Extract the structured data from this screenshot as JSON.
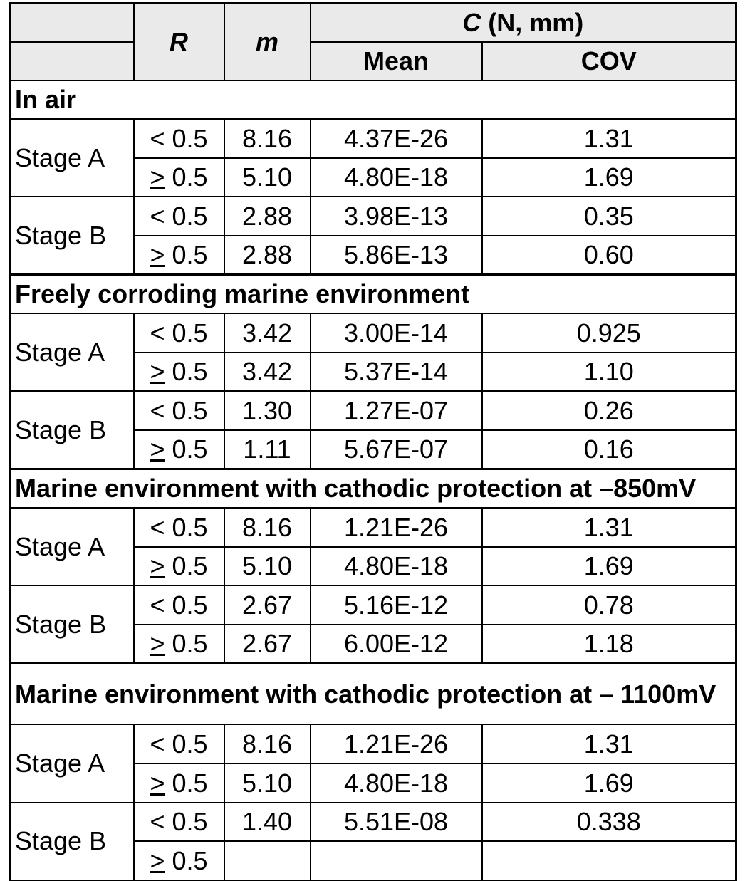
{
  "header": {
    "r_label": "R",
    "m_label": "m",
    "c_label_italic": "C",
    "c_label_units": " (N, mm)",
    "mean_label": "Mean",
    "cov_label": "COV"
  },
  "sections": [
    {
      "title": "In air",
      "stages": [
        {
          "stage": "Stage A",
          "rows": [
            {
              "r_sym": "<",
              "r_val": " 0.5",
              "m": "8.16",
              "mean": "4.37E-26",
              "cov": "1.31"
            },
            {
              "r_sym": ">",
              "r_val": " 0.5",
              "m": "5.10",
              "mean": "4.80E-18",
              "cov": "1.69"
            }
          ]
        },
        {
          "stage": "Stage B",
          "rows": [
            {
              "r_sym": "<",
              "r_val": " 0.5",
              "m": "2.88",
              "mean": "3.98E-13",
              "cov": "0.35"
            },
            {
              "r_sym": ">",
              "r_val": " 0.5",
              "m": "2.88",
              "mean": "5.86E-13",
              "cov": "0.60"
            }
          ]
        }
      ]
    },
    {
      "title": "Freely corroding marine environment",
      "stages": [
        {
          "stage": "Stage A",
          "rows": [
            {
              "r_sym": "<",
              "r_val": " 0.5",
              "m": "3.42",
              "mean": "3.00E-14",
              "cov": "0.925"
            },
            {
              "r_sym": ">",
              "r_val": " 0.5",
              "m": "3.42",
              "mean": "5.37E-14",
              "cov": "1.10"
            }
          ]
        },
        {
          "stage": "Stage B",
          "rows": [
            {
              "r_sym": "<",
              "r_val": " 0.5",
              "m": "1.30",
              "mean": "1.27E-07",
              "cov": "0.26"
            },
            {
              "r_sym": ">",
              "r_val": " 0.5",
              "m": "1.11",
              "mean": "5.67E-07",
              "cov": "0.16"
            }
          ]
        }
      ]
    },
    {
      "title": "Marine environment with cathodic protection at –850mV",
      "stages": [
        {
          "stage": "Stage A",
          "rows": [
            {
              "r_sym": "<",
              "r_val": " 0.5",
              "m": "8.16",
              "mean": "1.21E-26",
              "cov": "1.31"
            },
            {
              "r_sym": ">",
              "r_val": " 0.5",
              "m": "5.10",
              "mean": "4.80E-18",
              "cov": "1.69"
            }
          ]
        },
        {
          "stage": "Stage B",
          "rows": [
            {
              "r_sym": "<",
              "r_val": " 0.5",
              "m": "2.67",
              "mean": "5.16E-12",
              "cov": "0.78"
            },
            {
              "r_sym": ">",
              "r_val": " 0.5",
              "m": "2.67",
              "mean": "6.00E-12",
              "cov": "1.18"
            }
          ]
        }
      ]
    },
    {
      "title": "Marine environment with cathodic protection at – 1100mV",
      "stages": [
        {
          "stage": "Stage A",
          "rows": [
            {
              "r_sym": "<",
              "r_val": " 0.5",
              "m": "8.16",
              "mean": "1.21E-26",
              "cov": "1.31"
            },
            {
              "r_sym": ">",
              "r_val": " 0.5",
              "m": "5.10",
              "mean": "4.80E-18",
              "cov": "1.69"
            }
          ]
        },
        {
          "stage": "Stage B",
          "rows": [
            {
              "r_sym": "<",
              "r_val": " 0.5",
              "m": "1.40",
              "mean": "5.51E-08",
              "cov": "0.338"
            },
            {
              "r_sym": ">",
              "r_val": " 0.5",
              "m": "",
              "mean": "",
              "cov": ""
            }
          ]
        }
      ]
    }
  ]
}
